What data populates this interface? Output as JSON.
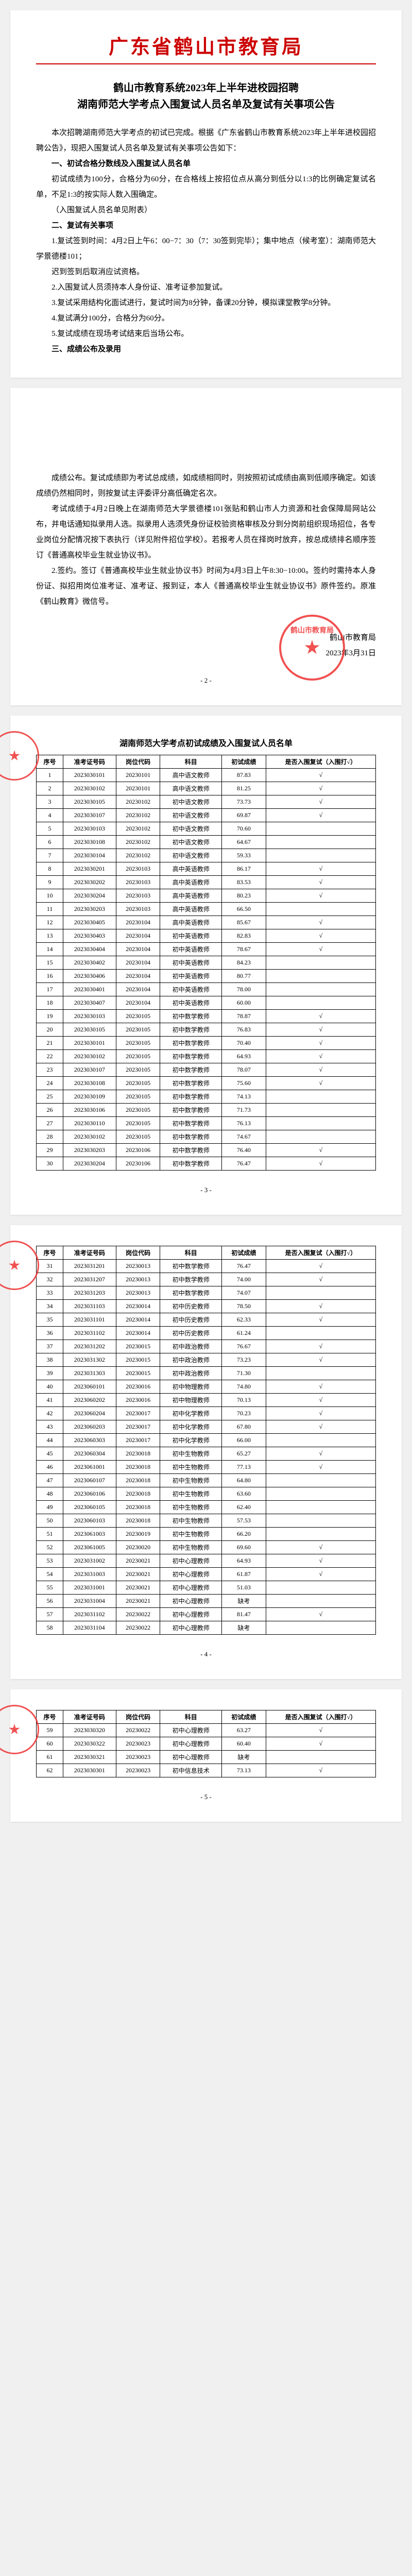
{
  "header": {
    "org": "广东省鹤山市教育局",
    "seal_text": "鹤山市教育局"
  },
  "doc": {
    "title_line1": "鹤山市教育系统2023年上半年进校园招聘",
    "title_line2": "湖南师范大学考点入围复试人员名单及复试有关事项公告",
    "para1": "本次招聘湖南师范大学考点的初试已完成。根据《广东省鹤山市教育系统2023年上半年进校园招聘公告》，现把入围复试人员名单及复试有关事项公告如下：",
    "sec1_head": "一、初试合格分数线及入围复试人员名单",
    "sec1_p1": "初试成绩为100分，合格分为60分，在合格线上按招位点从高分到低分以1:3的比例确定复试名单，不足1:3的按实际人数入围确定。",
    "sec1_p2": "（入围复试人员名单见附表）",
    "sec2_head": "二、复试有关事项",
    "sec2_p1": "1.复试签到时间：4月2日上午6：00−7：30（7：30签到完毕）；集中地点（候考室）：湖南师范大学景德楼101；",
    "sec2_p2": "迟到签到后取消应试资格。",
    "sec2_p3": "2.入围复试人员须持本人身份证、准考证参加复试。",
    "sec2_p4": "3.复试采用结构化面试进行，复试时间为8分钟，备课20分钟，模拟课堂教学8分钟。",
    "sec2_p5": "4.复试满分100分，合格分为60分。",
    "sec2_p6": "5.复试成绩在现场考试结束后当场公布。",
    "sec3_head": "三、成绩公布及录用",
    "page2_p1": "成绩公布。复试成绩即为考试总成绩，如成绩相同时，则按照初试成绩由高到低顺序确定。如该成绩仍然相同时，则按复试主评委评分高低确定名次。",
    "page2_p2": "考试成绩于4月2日晚上在湖南师范大学景德楼101张贴和鹤山市人力资源和社会保障局网站公布，并电话通知拟录用人选。拟录用人选须凭身份证校验资格审核及分到分岗前组织现场招位，各专业岗位分配情况按下表执行（详见附件招位学校）。若报考人员在择岗时放弃，按总成绩排名顺序签订《普通高校毕业生就业协议书》。",
    "page2_p3": "2.签约。签订《普通高校毕业生就业协议书》时间为4月3日上午8:30−10:00。签约时需持本人身份证、拟招用岗位准考证、准考证、报到证，本人《普通高校毕业生就业协议书》原件签约。原准《鹤山教育》微信号。",
    "sign_org": "鹤山市教育局",
    "sign_date": "2023年3月31日",
    "pagenum2": "- 2 -",
    "pagenum3": "- 3 -",
    "pagenum4": "- 4 -",
    "pagenum5": "- 5 -"
  },
  "table": {
    "title": "湖南师范大学考点初试成绩及入围复试人员名单",
    "cols": [
      "序号",
      "准考证号码",
      "岗位代码",
      "科目",
      "初试成绩",
      "是否入围复试（入围打√）"
    ],
    "rows_p3": [
      [
        "1",
        "2023030101",
        "20230101",
        "高中语文教师",
        "87.83",
        "√"
      ],
      [
        "2",
        "2023030102",
        "20230101",
        "高中语文教师",
        "81.25",
        "√"
      ],
      [
        "3",
        "2023030105",
        "20230102",
        "初中语文教师",
        "73.73",
        "√"
      ],
      [
        "4",
        "2023030107",
        "20230102",
        "初中语文教师",
        "69.87",
        "√"
      ],
      [
        "5",
        "2023030103",
        "20230102",
        "初中语文教师",
        "70.60",
        ""
      ],
      [
        "6",
        "2023030108",
        "20230102",
        "初中语文教师",
        "64.67",
        ""
      ],
      [
        "7",
        "2023030104",
        "20230102",
        "初中语文教师",
        "59.33",
        ""
      ],
      [
        "8",
        "2023030201",
        "20230103",
        "高中英语教师",
        "86.17",
        "√"
      ],
      [
        "9",
        "2023030202",
        "20230103",
        "高中英语教师",
        "83.53",
        "√"
      ],
      [
        "10",
        "2023030204",
        "20230103",
        "高中英语教师",
        "80.23",
        "√"
      ],
      [
        "11",
        "2023030203",
        "20230103",
        "高中英语教师",
        "66.50",
        ""
      ],
      [
        "12",
        "2023030405",
        "20230104",
        "高中英语教师",
        "85.67",
        "√"
      ],
      [
        "13",
        "2023030403",
        "20230104",
        "初中英语教师",
        "82.83",
        "√"
      ],
      [
        "14",
        "2023030404",
        "20230104",
        "初中英语教师",
        "78.67",
        "√"
      ],
      [
        "15",
        "2023030402",
        "20230104",
        "初中英语教师",
        "84.23",
        ""
      ],
      [
        "16",
        "2023030406",
        "20230104",
        "初中英语教师",
        "80.77",
        ""
      ],
      [
        "17",
        "2023030401",
        "20230104",
        "初中英语教师",
        "78.00",
        ""
      ],
      [
        "18",
        "2023030407",
        "20230104",
        "初中英语教师",
        "60.00",
        ""
      ],
      [
        "19",
        "2023030103",
        "20230105",
        "初中数学教师",
        "78.87",
        "√"
      ],
      [
        "20",
        "2023030105",
        "20230105",
        "初中数学教师",
        "76.83",
        "√"
      ],
      [
        "21",
        "2023030101",
        "20230105",
        "初中数学教师",
        "70.40",
        "√"
      ],
      [
        "22",
        "2023030102",
        "20230105",
        "初中数学教师",
        "64.93",
        "√"
      ],
      [
        "23",
        "2023030107",
        "20230105",
        "初中数学教师",
        "78.07",
        "√"
      ],
      [
        "24",
        "2023030108",
        "20230105",
        "初中数学教师",
        "75.60",
        "√"
      ],
      [
        "25",
        "2023030109",
        "20230105",
        "初中数学教师",
        "74.13",
        ""
      ],
      [
        "26",
        "2023030106",
        "20230105",
        "初中数学教师",
        "71.73",
        ""
      ],
      [
        "27",
        "2023030110",
        "20230105",
        "初中数学教师",
        "76.13",
        ""
      ],
      [
        "28",
        "2023030102",
        "20230105",
        "初中数学教师",
        "74.67",
        ""
      ],
      [
        "29",
        "2023030203",
        "20230106",
        "初中数学教师",
        "76.40",
        "√"
      ],
      [
        "30",
        "2023030204",
        "20230106",
        "初中数学教师",
        "76.47",
        "√"
      ]
    ],
    "rows_p4": [
      [
        "31",
        "2023031201",
        "20230013",
        "初中数学教师",
        "76.47",
        "√"
      ],
      [
        "32",
        "2023031207",
        "20230013",
        "初中数学教师",
        "74.00",
        "√"
      ],
      [
        "33",
        "2023031203",
        "20230013",
        "初中数学教师",
        "74.07",
        ""
      ],
      [
        "34",
        "2023031103",
        "20230014",
        "初中历史教师",
        "78.50",
        "√"
      ],
      [
        "35",
        "2023031101",
        "20230014",
        "初中历史教师",
        "62.33",
        "√"
      ],
      [
        "36",
        "2023031102",
        "20230014",
        "初中历史教师",
        "61.24",
        ""
      ],
      [
        "37",
        "2023031202",
        "20230015",
        "初中政治教师",
        "76.67",
        "√"
      ],
      [
        "38",
        "2023031302",
        "20230015",
        "初中政治教师",
        "73.23",
        "√"
      ],
      [
        "39",
        "2023031303",
        "20230015",
        "初中政治教师",
        "71.30",
        ""
      ],
      [
        "40",
        "2023060101",
        "20230016",
        "初中物理教师",
        "74.80",
        "√"
      ],
      [
        "41",
        "2023060202",
        "20230016",
        "初中物理教师",
        "70.13",
        "√"
      ],
      [
        "42",
        "2023060204",
        "20230017",
        "初中化学教师",
        "70.23",
        "√"
      ],
      [
        "43",
        "2023060203",
        "20230017",
        "初中化学教师",
        "67.80",
        "√"
      ],
      [
        "44",
        "2023060303",
        "20230017",
        "初中化学教师",
        "66.00",
        ""
      ],
      [
        "45",
        "2023060304",
        "20230018",
        "初中生物教师",
        "65.27",
        "√"
      ],
      [
        "46",
        "2023061001",
        "20230018",
        "初中生物教师",
        "77.13",
        "√"
      ],
      [
        "47",
        "2023060107",
        "20230018",
        "初中生物教师",
        "64.80",
        ""
      ],
      [
        "48",
        "2023060106",
        "20230018",
        "初中生物教师",
        "63.60",
        ""
      ],
      [
        "49",
        "2023060105",
        "20230018",
        "初中生物教师",
        "62.40",
        ""
      ],
      [
        "50",
        "2023060103",
        "20230018",
        "初中生物教师",
        "57.53",
        ""
      ],
      [
        "51",
        "2023061003",
        "20230019",
        "初中生物教师",
        "66.20",
        ""
      ],
      [
        "52",
        "2023061005",
        "20230020",
        "初中生物教师",
        "69.60",
        "√"
      ],
      [
        "53",
        "2023031002",
        "20230021",
        "初中心理教师",
        "64.93",
        "√"
      ],
      [
        "54",
        "2023031003",
        "20230021",
        "初中心理教师",
        "61.87",
        "√"
      ],
      [
        "55",
        "2023031001",
        "20230021",
        "初中心理教师",
        "51.03",
        ""
      ],
      [
        "56",
        "2023031004",
        "20230021",
        "初中心理教师",
        "缺考",
        ""
      ],
      [
        "57",
        "2023031102",
        "20230022",
        "初中心理教师",
        "81.47",
        "√"
      ],
      [
        "58",
        "2023031104",
        "20230022",
        "初中心理教师",
        "缺考",
        ""
      ]
    ],
    "rows_p5": [
      [
        "59",
        "2023030320",
        "20230022",
        "初中心理教师",
        "63.27",
        "√"
      ],
      [
        "60",
        "2023030322",
        "20230023",
        "初中心理教师",
        "60.40",
        "√"
      ],
      [
        "61",
        "2023030321",
        "20230023",
        "初中心理教师",
        "缺考",
        ""
      ],
      [
        "62",
        "2023030301",
        "20230023",
        "初中信息技术",
        "73.13",
        "√"
      ]
    ]
  }
}
